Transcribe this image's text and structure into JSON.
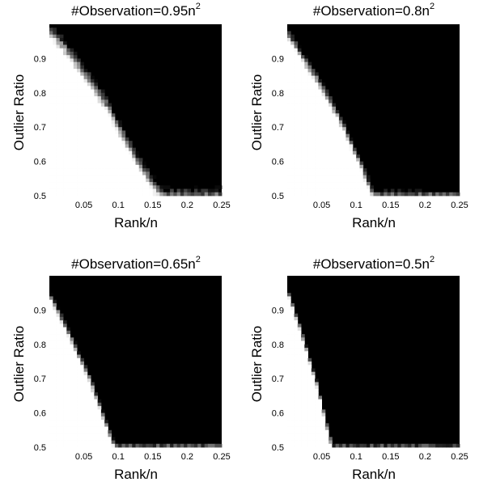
{
  "chart_data": [
    {
      "type": "heatmap",
      "title": "#Observation=0.95n",
      "title_superscript": "2",
      "xlabel": "Rank/n",
      "ylabel": "Outlier Ratio",
      "xlim": [
        0.0,
        0.25
      ],
      "ylim": [
        0.5,
        1.0
      ],
      "xticks": [
        "0.05",
        "0.1",
        "0.15",
        "0.2",
        "0.25"
      ],
      "yticks": [
        "0.5",
        "0.6",
        "0.7",
        "0.8",
        "0.9"
      ],
      "colormap": {
        "success": "#ffffff",
        "failure": "#000000"
      },
      "boundary": [
        [
          0.0,
          0.985
        ],
        [
          0.02,
          0.94
        ],
        [
          0.05,
          0.86
        ],
        [
          0.08,
          0.775
        ],
        [
          0.1,
          0.7
        ],
        [
          0.125,
          0.61
        ],
        [
          0.15,
          0.535
        ],
        [
          0.165,
          0.5
        ]
      ],
      "transition_width": 0.02
    },
    {
      "type": "heatmap",
      "title": "#Observation=0.8n",
      "title_superscript": "2",
      "xlabel": "Rank/n",
      "ylabel": "Outlier Ratio",
      "xlim": [
        0.0,
        0.25
      ],
      "ylim": [
        0.5,
        1.0
      ],
      "xticks": [
        "0.05",
        "0.1",
        "0.15",
        "0.2",
        "0.25"
      ],
      "yticks": [
        "0.5",
        "0.6",
        "0.7",
        "0.8",
        "0.9"
      ],
      "colormap": {
        "success": "#ffffff",
        "failure": "#000000"
      },
      "boundary": [
        [
          0.0,
          0.975
        ],
        [
          0.02,
          0.91
        ],
        [
          0.05,
          0.82
        ],
        [
          0.08,
          0.71
        ],
        [
          0.1,
          0.62
        ],
        [
          0.115,
          0.55
        ],
        [
          0.125,
          0.5
        ]
      ],
      "transition_width": 0.015
    },
    {
      "type": "heatmap",
      "title": "#Observation=0.65n",
      "title_superscript": "2",
      "xlabel": "Rank/n",
      "ylabel": "Outlier Ratio",
      "xlim": [
        0.0,
        0.25
      ],
      "ylim": [
        0.5,
        1.0
      ],
      "xticks": [
        "0.05",
        "0.1",
        "0.15",
        "0.2",
        "0.25"
      ],
      "yticks": [
        "0.5",
        "0.6",
        "0.7",
        "0.8",
        "0.9"
      ],
      "colormap": {
        "success": "#ffffff",
        "failure": "#000000"
      },
      "boundary": [
        [
          0.0,
          0.945
        ],
        [
          0.02,
          0.865
        ],
        [
          0.04,
          0.78
        ],
        [
          0.06,
          0.69
        ],
        [
          0.08,
          0.58
        ],
        [
          0.095,
          0.5
        ]
      ],
      "transition_width": 0.012
    },
    {
      "type": "heatmap",
      "title": "#Observation=0.5n",
      "title_superscript": "2",
      "xlabel": "Rank/n",
      "ylabel": "Outlier Ratio",
      "xlim": [
        0.0,
        0.25
      ],
      "ylim": [
        0.5,
        1.0
      ],
      "xticks": [
        "0.05",
        "0.1",
        "0.15",
        "0.2",
        "0.25"
      ],
      "yticks": [
        "0.5",
        "0.6",
        "0.7",
        "0.8",
        "0.9"
      ],
      "colormap": {
        "success": "#ffffff",
        "failure": "#000000"
      },
      "boundary": [
        [
          0.0,
          0.955
        ],
        [
          0.015,
          0.87
        ],
        [
          0.03,
          0.77
        ],
        [
          0.045,
          0.67
        ],
        [
          0.055,
          0.58
        ],
        [
          0.065,
          0.5
        ]
      ],
      "transition_width": 0.01
    }
  ]
}
